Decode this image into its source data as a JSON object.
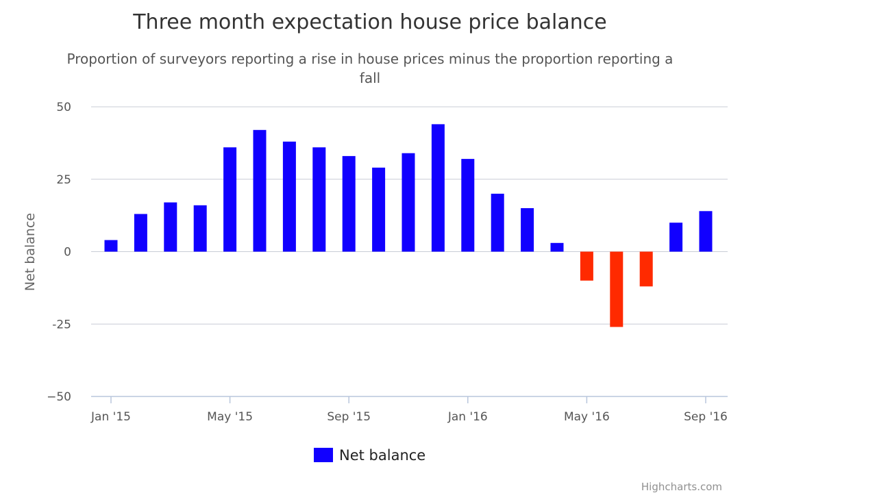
{
  "chart_data": {
    "type": "bar",
    "title": "Three month expectation house price balance",
    "subtitle_line1": "Proportion of surveyors reporting a rise in house prices minus the proportion reporting a",
    "subtitle_line2": "fall",
    "ylabel": "Net balance",
    "ylim": [
      -50,
      50
    ],
    "yticks": [
      50,
      25,
      0,
      -25,
      -50
    ],
    "ytick_labels": [
      "50",
      "25",
      "0",
      "-25",
      "−50"
    ],
    "grid": true,
    "categories": [
      "Jan '15",
      "Feb '15",
      "Mar '15",
      "Apr '15",
      "May '15",
      "Jun '15",
      "Jul '15",
      "Aug '15",
      "Sep '15",
      "Oct '15",
      "Nov '15",
      "Dec '15",
      "Jan '16",
      "Feb '16",
      "Mar '16",
      "Apr '16",
      "May '16",
      "Jun '16",
      "Jul '16",
      "Aug '16",
      "Sep '16"
    ],
    "xtick_labels": [
      {
        "index": 0,
        "label": "Jan '15"
      },
      {
        "index": 4,
        "label": "May '15"
      },
      {
        "index": 8,
        "label": "Sep '15"
      },
      {
        "index": 12,
        "label": "Jan '16"
      },
      {
        "index": 16,
        "label": "May '16"
      },
      {
        "index": 20,
        "label": "Sep '16"
      }
    ],
    "series": [
      {
        "name": "Net balance",
        "values": [
          4,
          13,
          17,
          16,
          36,
          42,
          38,
          36,
          33,
          29,
          34,
          44,
          32,
          20,
          15,
          3,
          -10,
          -26,
          -12,
          10,
          14
        ]
      }
    ],
    "positive_color": "#1100ff",
    "negative_color": "#ff2a00",
    "legend_position": "bottom-center",
    "credits": "Highcharts.com"
  }
}
